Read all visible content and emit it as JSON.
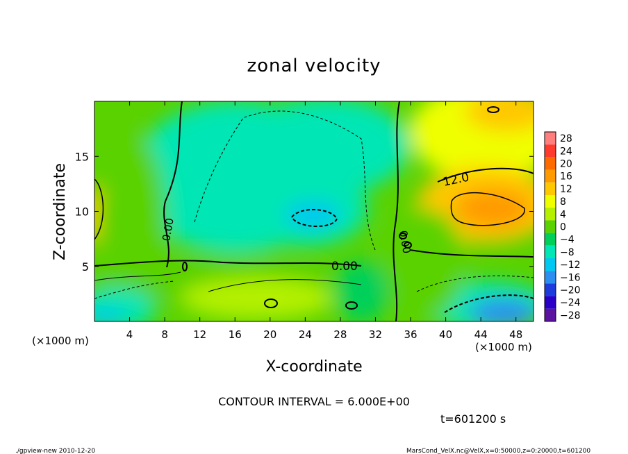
{
  "chart_data": {
    "type": "heatmap",
    "title": "zonal velocity",
    "xlabel": "X-coordinate",
    "ylabel": "Z-coordinate",
    "x_unit_left": "(×1000 m)",
    "x_unit_right": "(×1000 m)",
    "xlim": [
      0,
      50
    ],
    "ylim": [
      0,
      20
    ],
    "x_ticks": [
      4,
      8,
      12,
      16,
      20,
      24,
      28,
      32,
      36,
      40,
      44,
      48
    ],
    "y_ticks": [
      5,
      10,
      15
    ],
    "colorbar": {
      "levels": [
        28,
        24,
        20,
        16,
        12,
        8,
        4,
        0,
        -4,
        -8,
        -12,
        -16,
        -20,
        -24,
        -28
      ],
      "colors": [
        "#ff7f7f",
        "#ff3b2e",
        "#ff6a00",
        "#ff9a00",
        "#ffc800",
        "#f0ff00",
        "#b4f000",
        "#5ad200",
        "#00d05a",
        "#00e6b4",
        "#00c8f0",
        "#2c8ef0",
        "#1e3cdc",
        "#2800c8",
        "#5a14a0"
      ]
    },
    "contour_labels": [
      "12.0",
      "0.00",
      "0.00",
      "0.00"
    ],
    "contour_interval": "CONTOUR INTERVAL = 6.000E+00",
    "time_label": "t=601200 s",
    "regions": [
      {
        "name": "upper-right maximum",
        "x": 46,
        "z": 10,
        "value": 20
      },
      {
        "name": "left-edge maximum",
        "x": 0,
        "z": 9,
        "value": 14
      },
      {
        "name": "central minimum",
        "x": 25,
        "z": 9.5,
        "value": -12
      },
      {
        "name": "lower-right minimum",
        "x": 46,
        "z": 1,
        "value": -14
      },
      {
        "name": "lower-left minimum",
        "x": 2,
        "z": 0.5,
        "value": -12
      }
    ]
  },
  "footer": {
    "left": "./gpview-new   2010-12-20",
    "right": "MarsCond_VelX.nc@VelX,x=0:50000,z=0:20000,t=601200"
  }
}
